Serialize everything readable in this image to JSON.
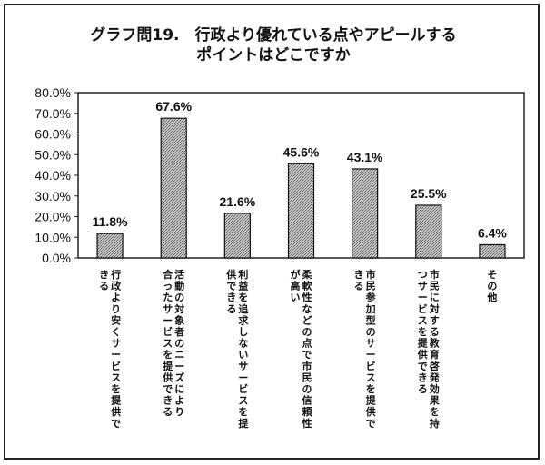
{
  "chart_data": {
    "type": "bar",
    "title_lines": [
      "グラフ問19.　行政より優れている点やアピールする",
      "ポイントはどこですか"
    ],
    "categories": [
      [
        "行政より安くサービスを提供で",
        "きる"
      ],
      [
        "活動の対象者のニーズにより",
        "合ったサービスを提供できる"
      ],
      [
        "利益を追求しないサービスを提",
        "供できる"
      ],
      [
        "柔軟性などの点で市民の信頼性",
        "が高い"
      ],
      [
        "市民参加型のサービスを提供で",
        "きる"
      ],
      [
        "市民に対する教育啓発効果を持",
        "つサービスを提供できる"
      ],
      [
        "その他"
      ]
    ],
    "values": [
      11.8,
      67.6,
      21.6,
      45.6,
      43.1,
      25.5,
      6.4
    ],
    "value_labels": [
      "11.8%",
      "67.6%",
      "21.6%",
      "45.6%",
      "43.1%",
      "25.5%",
      "6.4%"
    ],
    "ylim": [
      0,
      80
    ],
    "yticks": [
      "0.0%",
      "10.0%",
      "20.0%",
      "30.0%",
      "40.0%",
      "50.0%",
      "60.0%",
      "70.0%",
      "80.0%"
    ],
    "grid": false,
    "legend": "none",
    "colors": {
      "bar_fill": "#bdbdbd",
      "bar_pattern": "#555555",
      "axis": "#222222"
    }
  }
}
